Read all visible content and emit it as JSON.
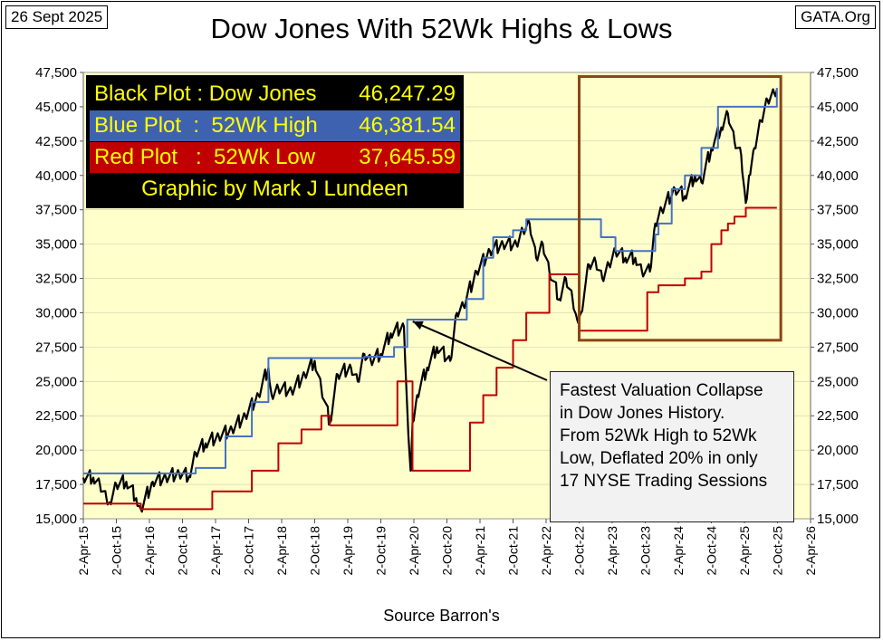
{
  "header": {
    "date": "26 Sept 2025",
    "site": "GATA.Org",
    "title": "Dow Jones With 52Wk Highs & Lows"
  },
  "legend": {
    "rows": [
      {
        "label": "Black Plot : Dow Jones",
        "value": "46,247.29"
      },
      {
        "label": "Blue Plot  :  52Wk High",
        "value": "46,381.54"
      },
      {
        "label": "Red Plot   :  52Wk Low",
        "value": "37,645.59"
      }
    ],
    "credit": "Graphic by Mark J Lundeen"
  },
  "annotation": {
    "lines": [
      "Fastest Valuation Collapse",
      "in Dow Jones History.",
      "From 52Wk High to 52Wk",
      "Low, Deflated 20% in only",
      "17 NYSE Trading Sessions"
    ]
  },
  "footer": {
    "source": "Source Barron's"
  },
  "colors": {
    "plot_bg": "#ffffcc",
    "dow": "#000000",
    "high": "#4472c4",
    "low": "#c00000",
    "highlight_box": "#8b4513",
    "arrow": "#000000"
  },
  "chart_data": {
    "type": "line",
    "title": "Dow Jones With 52Wk Highs & Lows",
    "xlabel": "Source Barron's",
    "ylabel": "",
    "ylim": [
      15000,
      47500
    ],
    "xlim": [
      2015.25,
      2026.25
    ],
    "y_ticks": [
      "15,000",
      "17,500",
      "20,000",
      "22,500",
      "25,000",
      "27,500",
      "30,000",
      "32,500",
      "35,000",
      "37,500",
      "40,000",
      "42,500",
      "45,000",
      "47,500"
    ],
    "x_ticks": [
      "2-Apr-15",
      "2-Oct-15",
      "2-Apr-16",
      "2-Oct-16",
      "2-Apr-17",
      "2-Oct-17",
      "2-Apr-18",
      "2-Oct-18",
      "2-Apr-19",
      "2-Oct-19",
      "2-Apr-20",
      "2-Oct-20",
      "2-Apr-21",
      "2-Oct-21",
      "2-Apr-22",
      "2-Oct-22",
      "2-Apr-23",
      "2-Oct-23",
      "2-Apr-24",
      "2-Oct-24",
      "2-Apr-25",
      "2-Oct-25",
      "2-Apr-26"
    ],
    "legend_position": "top-left",
    "highlight_range": {
      "x": [
        2022.75,
        2025.8
      ],
      "y": [
        28000,
        47200
      ]
    },
    "annotation_target": {
      "x": 2020.15,
      "y": 29500
    },
    "series": [
      {
        "name": "Dow Jones",
        "color": "#000000",
        "x": [
          2015.25,
          2015.4,
          2015.5,
          2015.6,
          2015.65,
          2015.75,
          2015.9,
          2016.05,
          2016.12,
          2016.3,
          2016.5,
          2016.7,
          2016.85,
          2016.95,
          2017.1,
          2017.3,
          2017.5,
          2017.7,
          2017.9,
          2018.05,
          2018.1,
          2018.2,
          2018.4,
          2018.6,
          2018.75,
          2018.85,
          2018.98,
          2019.1,
          2019.3,
          2019.4,
          2019.5,
          2019.6,
          2019.75,
          2019.9,
          2020.1,
          2020.15,
          2020.2,
          2020.23,
          2020.3,
          2020.45,
          2020.6,
          2020.8,
          2020.9,
          2021.0,
          2021.2,
          2021.4,
          2021.6,
          2021.8,
          2021.9,
          2022.0,
          2022.1,
          2022.2,
          2022.3,
          2022.45,
          2022.55,
          2022.65,
          2022.72,
          2022.78,
          2022.9,
          2023.0,
          2023.1,
          2023.2,
          2023.3,
          2023.45,
          2023.6,
          2023.7,
          2023.82,
          2023.9,
          2024.0,
          2024.2,
          2024.35,
          2024.5,
          2024.6,
          2024.75,
          2024.9,
          2025.0,
          2025.1,
          2025.2,
          2025.27,
          2025.32,
          2025.4,
          2025.5,
          2025.6,
          2025.7,
          2025.74
        ],
        "y": [
          18000,
          18000,
          17500,
          16500,
          16200,
          17500,
          17700,
          16500,
          15700,
          17700,
          18000,
          18300,
          18100,
          19800,
          20500,
          21000,
          21500,
          22500,
          24000,
          26000,
          24000,
          24500,
          24300,
          25500,
          26500,
          24500,
          22000,
          25500,
          26000,
          25000,
          27000,
          26500,
          27000,
          28500,
          29000,
          23000,
          18500,
          22000,
          24000,
          26000,
          27500,
          26500,
          30000,
          30500,
          33000,
          34500,
          35000,
          35000,
          36000,
          36500,
          34000,
          35000,
          33000,
          31000,
          32500,
          31000,
          29500,
          30000,
          33500,
          33700,
          32500,
          33500,
          34500,
          34000,
          34000,
          33000,
          33000,
          36500,
          37500,
          39000,
          38500,
          40000,
          39500,
          42000,
          43500,
          44500,
          42500,
          41500,
          38000,
          40000,
          42000,
          44000,
          45500,
          46000,
          46247
        ]
      },
      {
        "name": "52Wk High",
        "color": "#4472c4",
        "x": [
          2015.25,
          2016.5,
          2016.95,
          2017.4,
          2017.8,
          2018.05,
          2019.5,
          2019.95,
          2020.15,
          2020.9,
          2021.05,
          2021.3,
          2021.45,
          2021.75,
          2021.95,
          2022.95,
          2023.08,
          2023.3,
          2023.9,
          2023.95,
          2024.15,
          2024.35,
          2024.6,
          2024.85,
          2025.7,
          2025.74
        ],
        "y": [
          18300,
          18300,
          18700,
          21000,
          23500,
          26700,
          26800,
          27500,
          29500,
          29500,
          31000,
          34000,
          35500,
          36000,
          36800,
          36800,
          35500,
          34500,
          35700,
          36500,
          39000,
          40000,
          42000,
          45000,
          45000,
          46381
        ]
      },
      {
        "name": "52Wk Low",
        "color": "#c00000",
        "x": [
          2015.25,
          2015.65,
          2016.12,
          2017.05,
          2017.2,
          2017.8,
          2018.2,
          2018.55,
          2018.85,
          2018.98,
          2019.95,
          2020.0,
          2020.23,
          2020.9,
          2021.1,
          2021.3,
          2021.5,
          2021.75,
          2021.95,
          2022.3,
          2022.75,
          2023.7,
          2023.78,
          2023.95,
          2024.35,
          2024.6,
          2024.75,
          2024.9,
          2025.0,
          2025.1,
          2025.27,
          2025.74
        ],
        "y": [
          16100,
          16100,
          15700,
          15700,
          17000,
          18500,
          20500,
          21500,
          22500,
          21800,
          21800,
          25000,
          18500,
          18500,
          22000,
          24000,
          26000,
          28000,
          30000,
          32800,
          28700,
          28700,
          31500,
          32000,
          32500,
          33000,
          35000,
          36000,
          36500,
          37000,
          37645,
          37645
        ]
      }
    ]
  }
}
